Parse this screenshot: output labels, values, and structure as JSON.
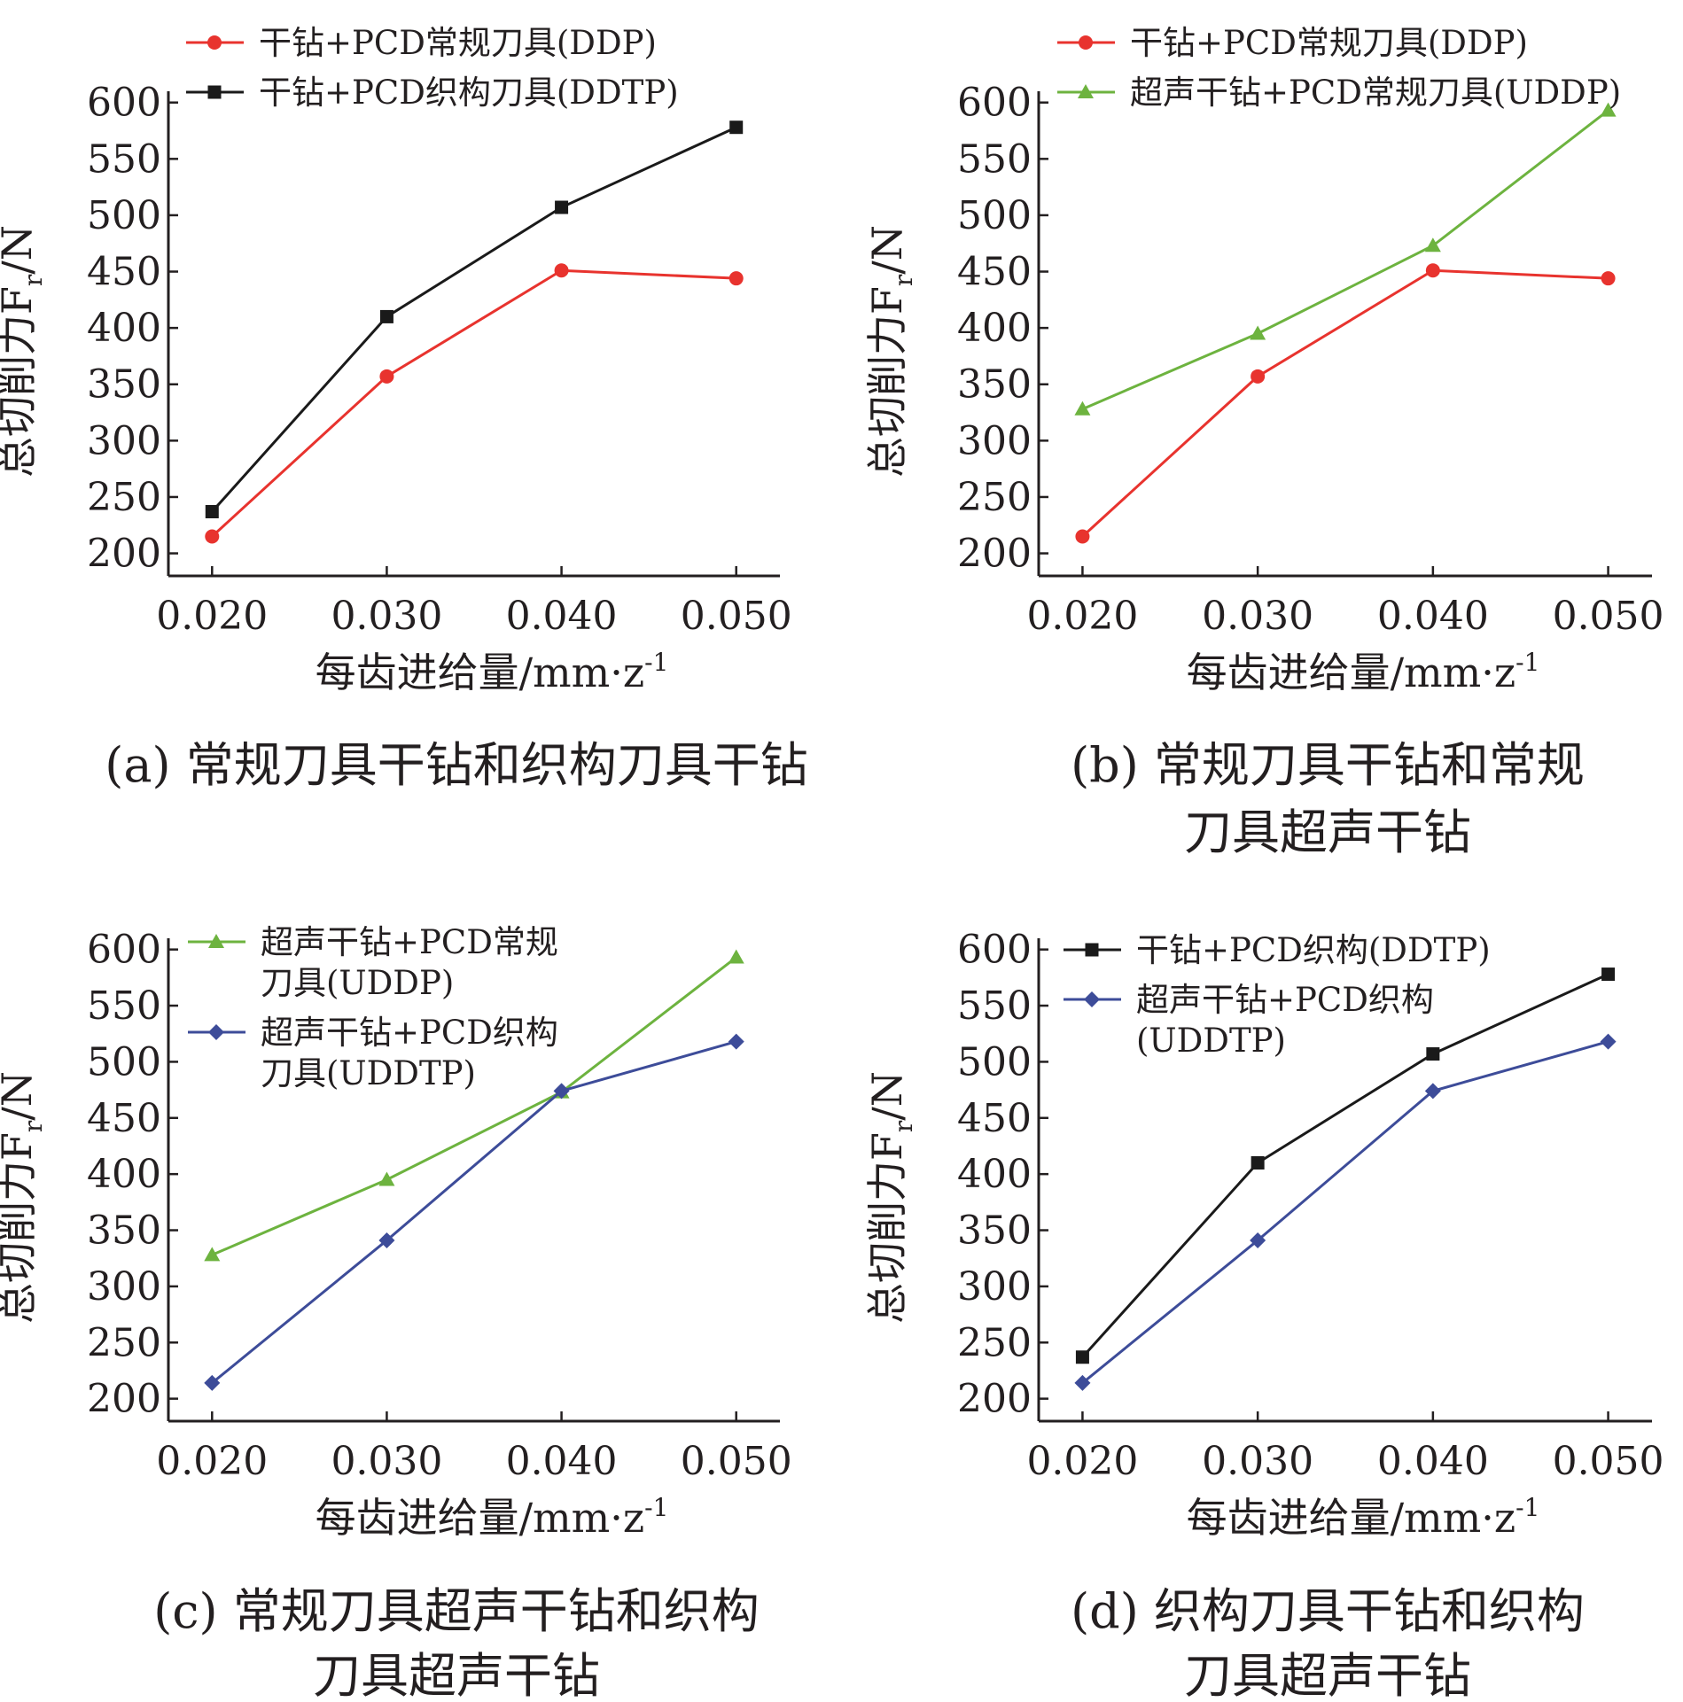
{
  "chart_data": [
    {
      "type": "line",
      "caption": [
        "(a) 常规刀具干钻和织构刀具干钻"
      ],
      "xlabel": "每齿进给量/mm·z",
      "xlabel_sup": "-1",
      "ylabel": "总切削力F",
      "ylabel_sub": "r",
      "ylabel_unit": "/N",
      "categories": [
        "0.020",
        "0.030",
        "0.040",
        "0.050"
      ],
      "x": [
        0.02,
        0.03,
        0.04,
        0.05
      ],
      "xlim": [
        0.0175,
        0.0525
      ],
      "ylim": [
        180,
        610
      ],
      "yticks": [
        "200",
        "250",
        "300",
        "350",
        "400",
        "450",
        "500",
        "550",
        "600"
      ],
      "legend": "top-left",
      "series": [
        {
          "name": [
            "干钻+PCD常规刀具(DDP)"
          ],
          "color": "#e8332e",
          "marker": "circle",
          "values": [
            215,
            357,
            451,
            444
          ]
        },
        {
          "name": [
            "干钻+PCD织构刀具(DDTP)"
          ],
          "color": "#1a1a1a",
          "marker": "square",
          "values": [
            237,
            410,
            507,
            578
          ]
        }
      ]
    },
    {
      "type": "line",
      "caption": [
        "(b) 常规刀具干钻和常规",
        "刀具超声干钻"
      ],
      "xlabel": "每齿进给量/mm·z",
      "xlabel_sup": "-1",
      "ylabel": "总切削力F",
      "ylabel_sub": "r",
      "ylabel_unit": "/N",
      "categories": [
        "0.020",
        "0.030",
        "0.040",
        "0.050"
      ],
      "x": [
        0.02,
        0.03,
        0.04,
        0.05
      ],
      "xlim": [
        0.0175,
        0.0525
      ],
      "ylim": [
        180,
        610
      ],
      "yticks": [
        "200",
        "250",
        "300",
        "350",
        "400",
        "450",
        "500",
        "550",
        "600"
      ],
      "legend": "top-left",
      "series": [
        {
          "name": [
            "干钻+PCD常规刀具(DDP)"
          ],
          "color": "#e8332e",
          "marker": "circle",
          "values": [
            215,
            357,
            451,
            444
          ]
        },
        {
          "name": [
            "超声干钻+PCD常规刀具(UDDP)"
          ],
          "color": "#6db33f",
          "marker": "triangle",
          "values": [
            328,
            395,
            473,
            593
          ]
        }
      ]
    },
    {
      "type": "line",
      "caption": [
        "(c) 常规刀具超声干钻和织构",
        "刀具超声干钻"
      ],
      "xlabel": "每齿进给量/mm·z",
      "xlabel_sup": "-1",
      "ylabel": "总切削力F",
      "ylabel_sub": "r",
      "ylabel_unit": "/N",
      "categories": [
        "0.020",
        "0.030",
        "0.040",
        "0.050"
      ],
      "x": [
        0.02,
        0.03,
        0.04,
        0.05
      ],
      "xlim": [
        0.0175,
        0.0525
      ],
      "ylim": [
        180,
        610
      ],
      "yticks": [
        "200",
        "250",
        "300",
        "350",
        "400",
        "450",
        "500",
        "550",
        "600"
      ],
      "legend": "top-left",
      "series": [
        {
          "name": [
            "超声干钻+PCD常规",
            "刀具(UDDP)"
          ],
          "color": "#6db33f",
          "marker": "triangle",
          "values": [
            328,
            395,
            473,
            593
          ]
        },
        {
          "name": [
            "超声干钻+PCD织构",
            "刀具(UDDTP)"
          ],
          "color": "#3d4c99",
          "marker": "diamond",
          "values": [
            214,
            341,
            474,
            518
          ]
        }
      ]
    },
    {
      "type": "line",
      "caption": [
        "(d) 织构刀具干钻和织构",
        "刀具超声干钻"
      ],
      "xlabel": "每齿进给量/mm·z",
      "xlabel_sup": "-1",
      "ylabel": "总切削力F",
      "ylabel_sub": "r",
      "ylabel_unit": "/N",
      "categories": [
        "0.020",
        "0.030",
        "0.040",
        "0.050"
      ],
      "x": [
        0.02,
        0.03,
        0.04,
        0.05
      ],
      "xlim": [
        0.0175,
        0.0525
      ],
      "ylim": [
        180,
        610
      ],
      "yticks": [
        "200",
        "250",
        "300",
        "350",
        "400",
        "450",
        "500",
        "550",
        "600"
      ],
      "legend": "top-left",
      "series": [
        {
          "name": [
            "干钻+PCD织构(DDTP)"
          ],
          "color": "#1a1a1a",
          "marker": "square",
          "values": [
            237,
            410,
            507,
            578
          ]
        },
        {
          "name": [
            "超声干钻+PCD织构",
            "(UDDTP)"
          ],
          "color": "#3d4c99",
          "marker": "diamond",
          "values": [
            214,
            341,
            474,
            518
          ]
        }
      ]
    }
  ]
}
